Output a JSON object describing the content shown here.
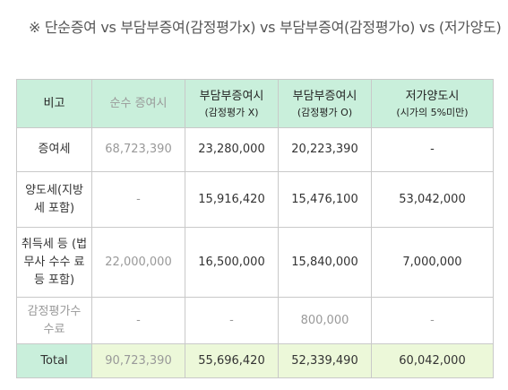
{
  "title": "※ 단순증여 vs 부담부증여(감정평가x) vs 부담부증여(감정평가o) vs (저가양도)",
  "table": {
    "header": {
      "c0": "비고",
      "c1": "순수 증여시",
      "c2_main": "부담부증여시",
      "c2_sub": "(감정평가 X)",
      "c3_main": "부담부증여시",
      "c3_sub": "(감정평가 O)",
      "c4_main": "저가양도시",
      "c4_sub": "(시가의 5%미만)"
    },
    "rows": [
      {
        "label": "증여세",
        "c1": "68,723,390",
        "c2": "23,280,000",
        "c3": "20,223,390",
        "c4": "-"
      },
      {
        "label": "양도세(지방 세 포함)",
        "c1": "-",
        "c2": "15,916,420",
        "c3": "15,476,100",
        "c4": "53,042,000"
      },
      {
        "label": "취득세 등 (법무사 수수 료 등 포함)",
        "c1": "22,000,000",
        "c2": "16,500,000",
        "c3": "15,840,000",
        "c4": "7,000,000"
      },
      {
        "label": "감정평가수 수료",
        "c1": "-",
        "c2": "-",
        "c3": "800,000",
        "c4": "-"
      }
    ],
    "total": {
      "label": "Total",
      "c1": "90,723,390",
      "c2": "55,696,420",
      "c3": "52,339,490",
      "c4": "60,042,000"
    }
  }
}
